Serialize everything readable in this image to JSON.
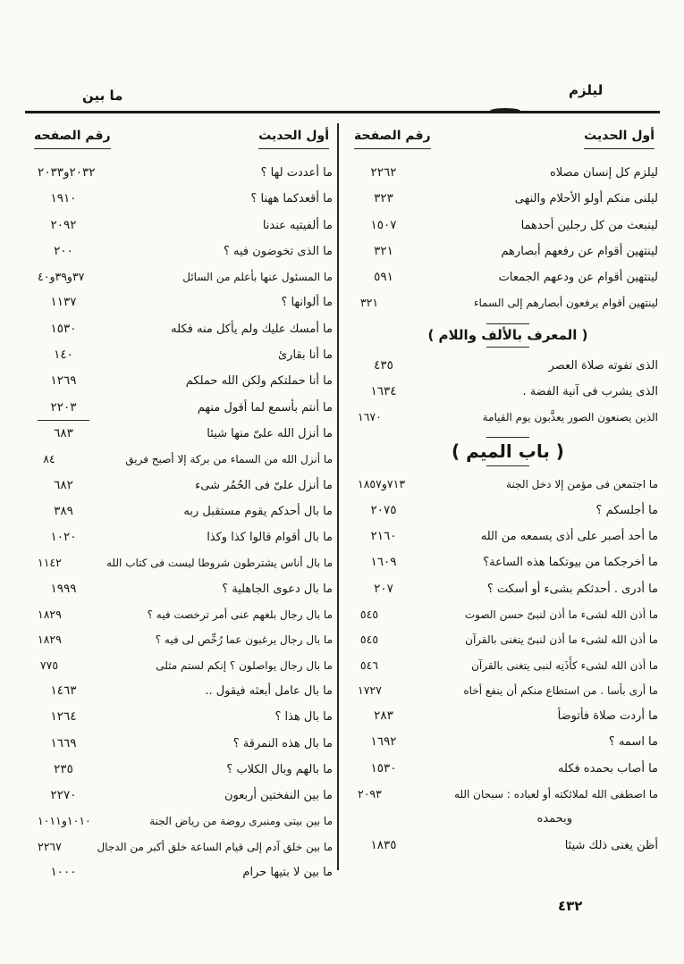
{
  "page": {
    "running_head_right": "ليلزم",
    "running_head_left": "ما بين",
    "page_number": "٤٣٢"
  },
  "right_column": {
    "header_hadith": "أول الحديث",
    "header_page": "رقم الصفحة",
    "items": [
      {
        "text": "ليلزم كل إنسان مصلاه",
        "num": "٢٢٦٢"
      },
      {
        "text": "ليلنى منكم أولو الأحلام والنهى",
        "num": "٣٢٣"
      },
      {
        "text": "لينبعث من كل رجلين أحدهما",
        "num": "١٥٠٧"
      },
      {
        "text": "لينتهين أقوام عن رفعهم أبصارهم",
        "num": "٣٢١"
      },
      {
        "text": "لينتهين أقوام عن ودعهم الجمعات",
        "num": "٥٩١"
      },
      {
        "text": "لينتهين أقوام يرفعون أبصارهم إلى السماء",
        "num": "٣٢١",
        "tight": true
      },
      {
        "section": "( المعرف بالألف واللام )",
        "size": "small"
      },
      {
        "text": "الذى تفوته صلاة العصر",
        "num": "٤٣٥"
      },
      {
        "text": "الذى يشرب فى آنية الفضة .",
        "num": "١٦٣٤"
      },
      {
        "text": "الذين يصنعون الصور يعذَّبون يوم القيامة",
        "num": "١٦٧٠",
        "tight": true
      },
      {
        "section": "( باب الميم )",
        "size": "big"
      },
      {
        "text": "ما اجتمعن فى مؤمن إلا دخل الجنة",
        "num": "٧١٣و١٨٥٧",
        "tight": true
      },
      {
        "text": "ما أجلسكم ؟",
        "num": "٢٠٧٥"
      },
      {
        "text": "ما أحد أصبر على أذى يسمعه من الله",
        "num": "٢١٦٠"
      },
      {
        "text": "ما أخرجكما من بيوتكما هذه الساعة؟",
        "num": "١٦٠٩"
      },
      {
        "text": "ما أدرى . أحدثكم بشىء أو أسكت ؟",
        "num": "٢٠٧"
      },
      {
        "text": "ما أذن الله لشىء ما أذن لنبىّ حسن الصوت",
        "num": "٥٤٥",
        "tight": true
      },
      {
        "text": "ما أذن الله لشىء ما أذن لنبىّ يتغنى بالقرآن",
        "num": "٥٤٥",
        "tight": true
      },
      {
        "text": "ما أذن الله لشىء كأَذَنِه لنبى يتغنى بالقرآن",
        "num": "٥٤٦",
        "tight": true
      },
      {
        "text": "ما أرى بأسا . من استطاع منكم أن ينفع أخاه",
        "num": "١٧٢٧",
        "tight": true
      },
      {
        "text": "ما أردت صلاة فأتوضأ",
        "num": "٢٨٣"
      },
      {
        "text": "ما اسمه ؟",
        "num": "١٦٩٢"
      },
      {
        "text": "ما أصاب بحمده فكله",
        "num": "١٥٣٠"
      },
      {
        "text": "ما اصطفى الله لملائكته أو لعباده : سبحان الله",
        "text2": "وبحمده",
        "num": "٢٠٩٣",
        "tight": true
      },
      {
        "text": "أظن يغنى ذلك شيئا",
        "num": "١٨٣٥"
      }
    ]
  },
  "left_column": {
    "header_hadith": "أول الحديث",
    "header_page": "رقم الصفحه",
    "items": [
      {
        "text": "ما أعددت لها ؟",
        "num": "٢٠٣٢و٢٠٣٣"
      },
      {
        "text": "ما أقعدكما ههنا ؟",
        "num": "١٩١٠"
      },
      {
        "text": "ما ألفيتيه عندنا",
        "num": "٢٠٩٢"
      },
      {
        "text": "ما الذى تخوضون فيه ؟",
        "num": "٢٠٠"
      },
      {
        "text": "ما المسئول عنها بأعلم من السائل",
        "num": "٣٧و٣٩و٤٠",
        "tight": true
      },
      {
        "text": "ما ألوانها ؟",
        "num": "١١٣٧"
      },
      {
        "text": "ما أمسك عليك ولم يأكل منه فكله",
        "num": "١٥٣٠"
      },
      {
        "text": "ما أنا بقارئ",
        "num": "١٤٠"
      },
      {
        "text": "ما أنا حملتكم ولكن الله حملكم",
        "num": "١٢٦٩"
      },
      {
        "text": "ما أنتم بأسمع لما أقول منهم",
        "num": "٢٢٠٣",
        "num_underline": true
      },
      {
        "text": "ما أنزل الله علىّ منها شيئا",
        "num": "٦٨٣"
      },
      {
        "text": "ما أنزل الله من السماء من بركة إلا أصبح فريق",
        "num": "٨٤",
        "tight": true
      },
      {
        "text": "ما أنزل علىّ فى الحُمُر شىء",
        "num": "٦٨٢"
      },
      {
        "text": "ما بال أحدكم يقوم مستقبل ربه",
        "num": "٣٨٩"
      },
      {
        "text": "ما بال أقوام قالوا كذا وكذا",
        "num": "١٠٢٠"
      },
      {
        "text": "ما بال أناس يشترطون شروطا ليست فى كتاب الله",
        "num": "١١٤٢",
        "tight": true
      },
      {
        "text": "ما بال دعوى الجاهلية ؟",
        "num": "١٩٩٩"
      },
      {
        "text": "ما بال رجال بلغهم عنى أمر ترخصت فيه ؟",
        "num": "١٨٢٩",
        "tight": true
      },
      {
        "text": "ما بال رجال يرغبون عما رُخِّص لى فيه ؟",
        "num": "١٨٢٩",
        "tight": true
      },
      {
        "text": "ما بال رجال يواصلون ؟ إنكم لستم مثلى",
        "num": "٧٧٥",
        "tight": true
      },
      {
        "text": "ما بال عامل أبعثه فيقول ..",
        "num": "١٤٦٣"
      },
      {
        "text": "ما بال هذا ؟",
        "num": "١٢٦٤"
      },
      {
        "text": "ما بال هذه النمرقة ؟",
        "num": "١٦٦٩"
      },
      {
        "text": "ما بالهم وبال الكلاب ؟",
        "num": "٢٣٥"
      },
      {
        "text": "ما بين النفختين أربعون",
        "num": "٢٢٧٠"
      },
      {
        "text": "ما بين بيتى ومنبرى روضة من رياض الجنة",
        "num": "١٠١٠و١٠١١",
        "tight": true
      },
      {
        "text": "ما بين خلق آدم إلى قيام الساعة خلق أكبر من الدجال",
        "num": "٢٢٦٧",
        "tight": true
      },
      {
        "text": "ما بين لا بتيها حرام",
        "num": "١٠٠٠"
      }
    ]
  }
}
